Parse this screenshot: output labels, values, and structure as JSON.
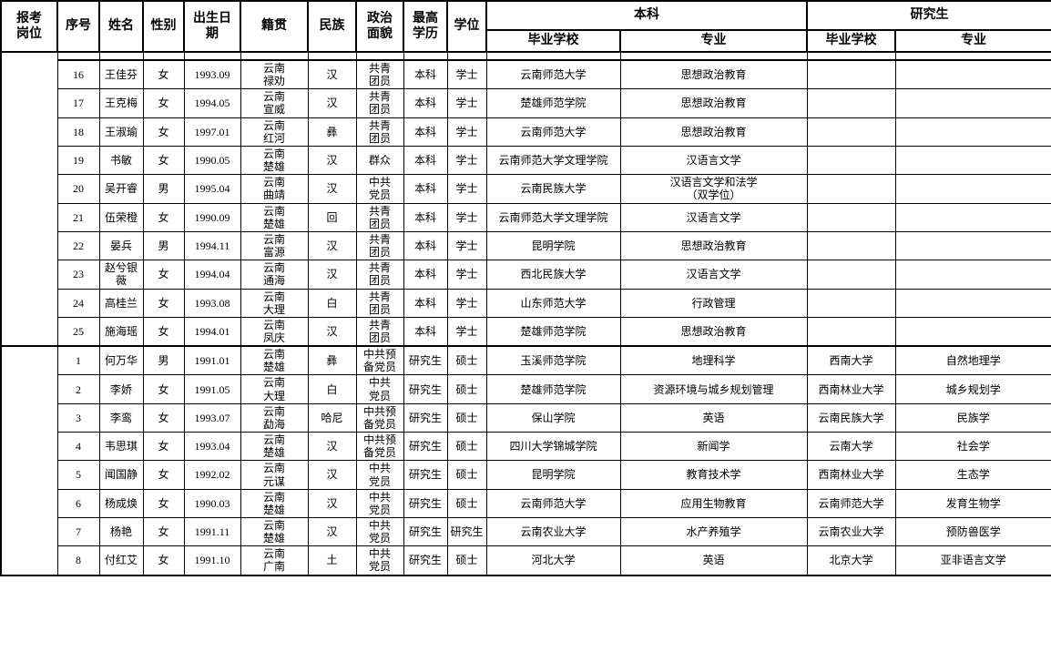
{
  "table": {
    "headers": {
      "position": "报考\n岗位",
      "no": "序号",
      "name": "姓名",
      "gender": "性别",
      "birth": "出生日\n期",
      "origin": "籍贯",
      "ethnic": "民族",
      "political": "政治\n面貌",
      "education": "最高\n学历",
      "degree": "学位",
      "undergrad_group": "本科",
      "grad_group": "研究生",
      "school": "毕业学校",
      "major": "专业"
    },
    "sections": [
      {
        "position_label": "",
        "leading_partial_row": true,
        "rows": [
          {
            "no": "16",
            "name": "王佳芬",
            "gender": "女",
            "birth": "1993.09",
            "origin": "云南\n禄劝",
            "ethnic": "汉",
            "political": "共青\n团员",
            "education": "本科",
            "degree": "学士",
            "ug_school": "云南师范大学",
            "ug_major": "思想政治教育",
            "g_school": "",
            "g_major": ""
          },
          {
            "no": "17",
            "name": "王克梅",
            "gender": "女",
            "birth": "1994.05",
            "origin": "云南\n宣威",
            "ethnic": "汉",
            "political": "共青\n团员",
            "education": "本科",
            "degree": "学士",
            "ug_school": "楚雄师范学院",
            "ug_major": "思想政治教育",
            "g_school": "",
            "g_major": ""
          },
          {
            "no": "18",
            "name": "王淑瑜",
            "gender": "女",
            "birth": "1997.01",
            "origin": "云南\n红河",
            "ethnic": "彝",
            "political": "共青\n团员",
            "education": "本科",
            "degree": "学士",
            "ug_school": "云南师范大学",
            "ug_major": "思想政治教育",
            "g_school": "",
            "g_major": ""
          },
          {
            "no": "19",
            "name": "书敏",
            "gender": "女",
            "birth": "1990.05",
            "origin": "云南\n楚雄",
            "ethnic": "汉",
            "political": "群众",
            "education": "本科",
            "degree": "学士",
            "ug_school": "云南师范大学文理学院",
            "ug_major": "汉语言文学",
            "g_school": "",
            "g_major": ""
          },
          {
            "no": "20",
            "name": "吴开睿",
            "gender": "男",
            "birth": "1995.04",
            "origin": "云南\n曲靖",
            "ethnic": "汉",
            "political": "中共\n党员",
            "education": "本科",
            "degree": "学士",
            "ug_school": "云南民族大学",
            "ug_major": "汉语言文学和法学\n（双学位）",
            "g_school": "",
            "g_major": ""
          },
          {
            "no": "21",
            "name": "伍荣橙",
            "gender": "女",
            "birth": "1990.09",
            "origin": "云南\n楚雄",
            "ethnic": "回",
            "political": "共青\n团员",
            "education": "本科",
            "degree": "学士",
            "ug_school": "云南师范大学文理学院",
            "ug_major": "汉语言文学",
            "g_school": "",
            "g_major": ""
          },
          {
            "no": "22",
            "name": "晏兵",
            "gender": "男",
            "birth": "1994.11",
            "origin": "云南\n富源",
            "ethnic": "汉",
            "political": "共青\n团员",
            "education": "本科",
            "degree": "学士",
            "ug_school": "昆明学院",
            "ug_major": "思想政治教育",
            "g_school": "",
            "g_major": ""
          },
          {
            "no": "23",
            "name": "赵兮银\n薇",
            "gender": "女",
            "birth": "1994.04",
            "origin": "云南\n通海",
            "ethnic": "汉",
            "political": "共青\n团员",
            "education": "本科",
            "degree": "学士",
            "ug_school": "西北民族大学",
            "ug_major": "汉语言文学",
            "g_school": "",
            "g_major": ""
          },
          {
            "no": "24",
            "name": "高桂兰",
            "gender": "女",
            "birth": "1993.08",
            "origin": "云南\n大理",
            "ethnic": "白",
            "political": "共青\n团员",
            "education": "本科",
            "degree": "学士",
            "ug_school": "山东师范大学",
            "ug_major": "行政管理",
            "g_school": "",
            "g_major": ""
          },
          {
            "no": "25",
            "name": "施海瑶",
            "gender": "女",
            "birth": "1994.01",
            "origin": "云南\n凤庆",
            "ethnic": "汉",
            "political": "共青\n团员",
            "education": "本科",
            "degree": "学士",
            "ug_school": "楚雄师范学院",
            "ug_major": "思想政治教育",
            "g_school": "",
            "g_major": ""
          }
        ]
      },
      {
        "position_label": "",
        "leading_partial_row": false,
        "rows": [
          {
            "no": "1",
            "name": "何万华",
            "gender": "男",
            "birth": "1991.01",
            "origin": "云南\n楚雄",
            "ethnic": "彝",
            "political": "中共预\n备党员",
            "education": "研究生",
            "degree": "硕士",
            "ug_school": "玉溪师范学院",
            "ug_major": "地理科学",
            "g_school": "西南大学",
            "g_major": "自然地理学"
          },
          {
            "no": "2",
            "name": "李娇",
            "gender": "女",
            "birth": "1991.05",
            "origin": "云南\n大理",
            "ethnic": "白",
            "political": "中共\n党员",
            "education": "研究生",
            "degree": "硕士",
            "ug_school": "楚雄师范学院",
            "ug_major": "资源环境与城乡规划管理",
            "g_school": "西南林业大学",
            "g_major": "城乡规划学"
          },
          {
            "no": "3",
            "name": "李鸾",
            "gender": "女",
            "birth": "1993.07",
            "origin": "云南\n勐海",
            "ethnic": "哈尼",
            "political": "中共预\n备党员",
            "education": "研究生",
            "degree": "硕士",
            "ug_school": "保山学院",
            "ug_major": "英语",
            "g_school": "云南民族大学",
            "g_major": "民族学"
          },
          {
            "no": "4",
            "name": "韦思琪",
            "gender": "女",
            "birth": "1993.04",
            "origin": "云南\n楚雄",
            "ethnic": "汉",
            "political": "中共预\n备党员",
            "education": "研究生",
            "degree": "硕士",
            "ug_school": "四川大学锦城学院",
            "ug_major": "新闻学",
            "g_school": "云南大学",
            "g_major": "社会学"
          },
          {
            "no": "5",
            "name": "闻国静",
            "gender": "女",
            "birth": "1992.02",
            "origin": "云南\n元谋",
            "ethnic": "汉",
            "political": "中共\n党员",
            "education": "研究生",
            "degree": "硕士",
            "ug_school": "昆明学院",
            "ug_major": "教育技术学",
            "g_school": "西南林业大学",
            "g_major": "生态学"
          },
          {
            "no": "6",
            "name": "杨成焕",
            "gender": "女",
            "birth": "1990.03",
            "origin": "云南\n楚雄",
            "ethnic": "汉",
            "political": "中共\n党员",
            "education": "研究生",
            "degree": "硕士",
            "ug_school": "云南师范大学",
            "ug_major": "应用生物教育",
            "g_school": "云南师范大学",
            "g_major": "发育生物学"
          },
          {
            "no": "7",
            "name": "杨艳",
            "gender": "女",
            "birth": "1991.11",
            "origin": "云南\n楚雄",
            "ethnic": "汉",
            "political": "中共\n党员",
            "education": "研究生",
            "degree": "研究生",
            "ug_school": "云南农业大学",
            "ug_major": "水产养殖学",
            "g_school": "云南农业大学",
            "g_major": "预防兽医学"
          },
          {
            "no": "8",
            "name": "付红艾",
            "gender": "女",
            "birth": "1991.10",
            "origin": "云南\n广南",
            "ethnic": "土",
            "political": "中共\n党员",
            "education": "研究生",
            "degree": "硕士",
            "ug_school": "河北大学",
            "ug_major": "英语",
            "g_school": "北京大学",
            "g_major": "亚非语言文学"
          }
        ]
      }
    ],
    "colors": {
      "border": "#000000",
      "text": "#000000",
      "background": "#ffffff"
    }
  }
}
